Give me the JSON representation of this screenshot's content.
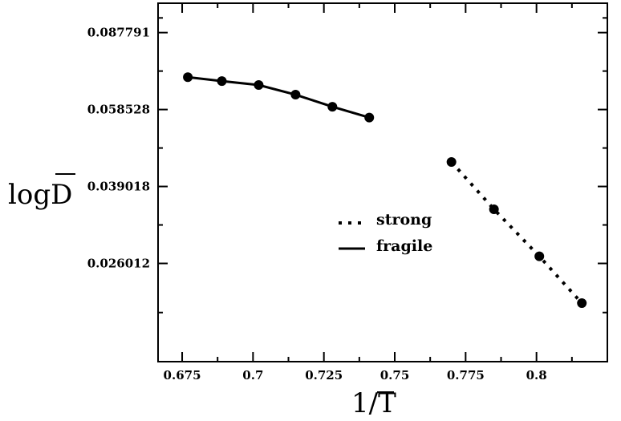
{
  "chart_data": {
    "type": "line",
    "xlabel": "1/T",
    "xlabel_overline": "T",
    "ylabel": "logD",
    "ylabel_overline": "D",
    "x_ticks": [
      "0.675",
      "0.7",
      "0.725",
      "0.75",
      "0.775",
      "0.8"
    ],
    "x_tick_values": [
      0.675,
      0.7,
      0.725,
      0.75,
      0.775,
      0.8
    ],
    "y_ticks": [
      "0.087791",
      "0.058528",
      "0.039018",
      "0.026012"
    ],
    "y_tick_values": [
      0.087791,
      0.058528,
      0.039018,
      0.026012
    ],
    "y_scale": "log",
    "xlim": [
      0.6665,
      0.825
    ],
    "ylim": [
      0.0155,
      0.1025
    ],
    "grid": false,
    "legend_position": "center",
    "series": [
      {
        "name": "strong",
        "line_style": "dotted",
        "x": [
          0.77,
          0.785,
          0.801,
          0.816
        ],
        "y": [
          0.0444,
          0.0346,
          0.027,
          0.0211
        ]
      },
      {
        "name": "fragile",
        "line_style": "solid",
        "x": [
          0.677,
          0.689,
          0.702,
          0.715,
          0.728,
          0.741
        ],
        "y": [
          0.0694,
          0.068,
          0.0666,
          0.0633,
          0.0594,
          0.0561
        ]
      }
    ]
  }
}
